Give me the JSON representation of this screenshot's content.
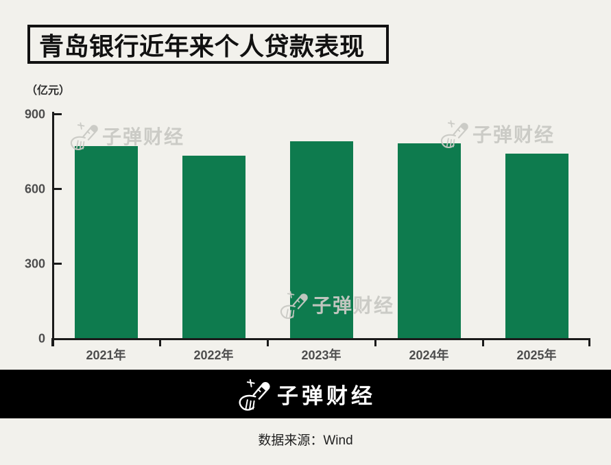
{
  "header": {
    "title": "青岛银行近年来个人贷款表现"
  },
  "watermark": {
    "text": "子弹财经"
  },
  "footer": {
    "brand": "子弹财经"
  },
  "source": {
    "text": "数据来源：Wind"
  },
  "icons": {
    "brand_logo": "bullet-finance-logo-icon"
  },
  "colors": {
    "background": "#F2F1EC",
    "bar": "#0E7B4E",
    "axis": "#1A1A1A",
    "tick_label": "#4D4D4D",
    "watermark": "#C9C9C4",
    "footer_bg": "#000000",
    "footer_text": "#FFFFFF"
  },
  "chart_data": {
    "type": "bar",
    "title": "青岛银行近年来个人贷款表现",
    "unit_label": "（亿元）",
    "categories": [
      "2021年",
      "2022年",
      "2023年",
      "2024年",
      "2025年"
    ],
    "values": [
      770,
      733,
      790,
      782,
      740
    ],
    "xlabel": "",
    "ylabel": "（亿元）",
    "ylim": [
      0,
      900
    ],
    "yticks": [
      0,
      300,
      600,
      900
    ],
    "grid": false,
    "legend": false,
    "source": "数据来源：Wind"
  }
}
